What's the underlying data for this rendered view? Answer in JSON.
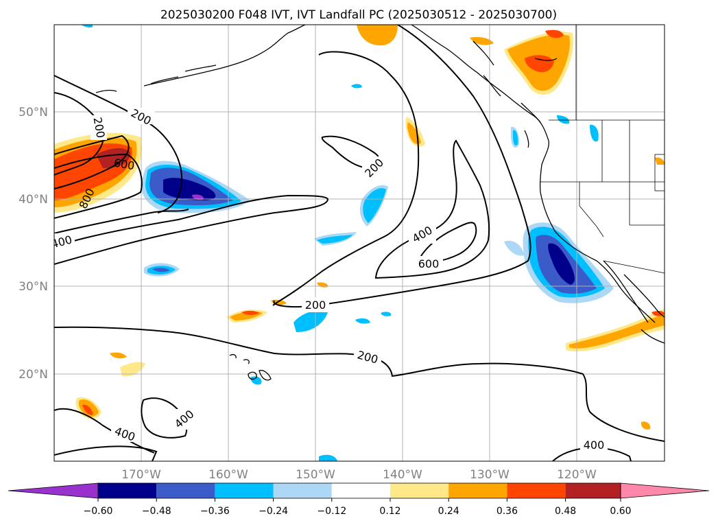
{
  "figure": {
    "title": "2025030200 F048 IVT, IVT Landfall PC (2025030512 - 2025030700)"
  },
  "map": {
    "lat_ticks": [
      "50°N",
      "40°N",
      "30°N",
      "20°N"
    ],
    "lon_ticks": [
      "170°W",
      "160°W",
      "150°W",
      "140°W",
      "130°W",
      "120°W"
    ],
    "lon_range": [
      -180,
      -110
    ],
    "lat_range": [
      10,
      60
    ],
    "grid": true,
    "contour_labels": [
      "200",
      "200",
      "600",
      "800",
      "400",
      "200",
      "400",
      "600",
      "200",
      "200",
      "400",
      "400",
      "400"
    ]
  },
  "colorbar": {
    "tick_labels": [
      "−0.60",
      "−0.48",
      "−0.36",
      "−0.24",
      "−0.12",
      "0.12",
      "0.24",
      "0.36",
      "0.48",
      "0.60"
    ],
    "colors": [
      "#9932cc",
      "#00008b",
      "#3a5bc8",
      "#00bfff",
      "#add8f5",
      "#ffffff",
      "#ffe88a",
      "#ffa500",
      "#ff4500",
      "#b22222",
      "#ff88aa"
    ],
    "extend": "both"
  }
}
